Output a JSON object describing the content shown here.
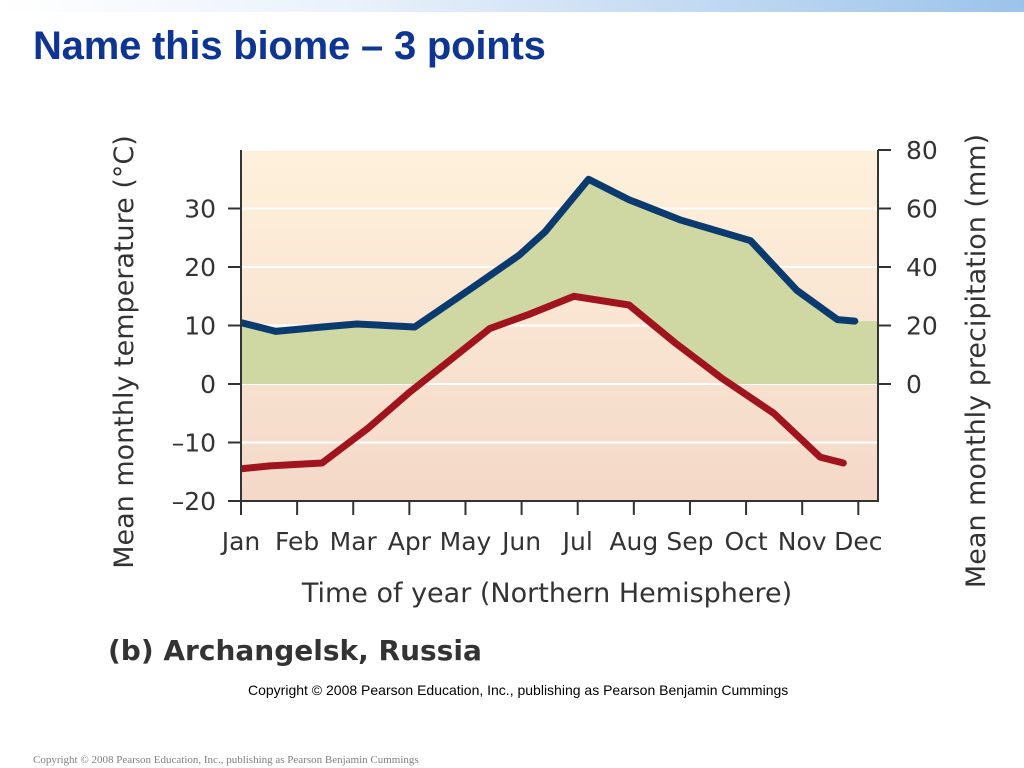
{
  "slide": {
    "title": "Name this biome – 3 points",
    "caption": "(b) Archangelsk, Russia",
    "copyright_inner": "Copyright © 2008 Pearson Education, Inc., publishing as Pearson Benjamin Cummings",
    "copyright_footer": "Copyright © 2008 Pearson Education, Inc., publishing as Pearson Benjamin Cummings"
  },
  "chart_data": {
    "type": "line",
    "categories": [
      "Jan",
      "Feb",
      "Mar",
      "Apr",
      "May",
      "Jun",
      "Jul",
      "Aug",
      "Sep",
      "Oct",
      "Nov",
      "Dec"
    ],
    "xlabel": "Time of year (Northern Hemisphere)",
    "y_left_label": "Mean monthly temperature (°C)",
    "y_right_label": "Mean monthly precipitation (mm)",
    "y_left_ticks": [
      "30",
      "20",
      "10",
      "0",
      "–10",
      "–20"
    ],
    "y_right_ticks": [
      "80",
      "60",
      "40",
      "20",
      "0"
    ],
    "y_left_lim": [
      -20,
      40
    ],
    "y_right_lim": [
      -40,
      80
    ],
    "grid": true,
    "series": [
      {
        "axis": "left",
        "color": "#a0141e",
        "values": [
          -14.5,
          -14,
          -13.5,
          -7.5,
          -1.5,
          4,
          9.5,
          12,
          15,
          13.5,
          7,
          1,
          -5,
          -12.5,
          -13.5
        ],
        "x": [
          0.0,
          0.5,
          1.4,
          2.2,
          2.9,
          3.6,
          4.3,
          5.0,
          5.75,
          6.7,
          7.5,
          8.3,
          9.2,
          10.0,
          10.4
        ]
      },
      {
        "axis": "right",
        "color": "#0b3b6e",
        "values": [
          21,
          18,
          19.5,
          20.5,
          19.5,
          33,
          44,
          52,
          70,
          63,
          56,
          49,
          32,
          22,
          21.5
        ],
        "x": [
          0.0,
          0.6,
          1.4,
          2.0,
          3.0,
          4.0,
          4.8,
          5.25,
          6.0,
          6.7,
          7.6,
          8.8,
          9.6,
          10.3,
          10.6
        ]
      }
    ],
    "shaded_region": "between temperature and precipitation lines, light green"
  },
  "colors": {
    "title": "#0e3591",
    "temperature_line": "#a0141e",
    "precipitation_line": "#0b3b6e",
    "fill_between": "#cfd8a2",
    "plot_bg_top": "#fdeeda",
    "plot_bg_bottom": "#f6dccd"
  }
}
